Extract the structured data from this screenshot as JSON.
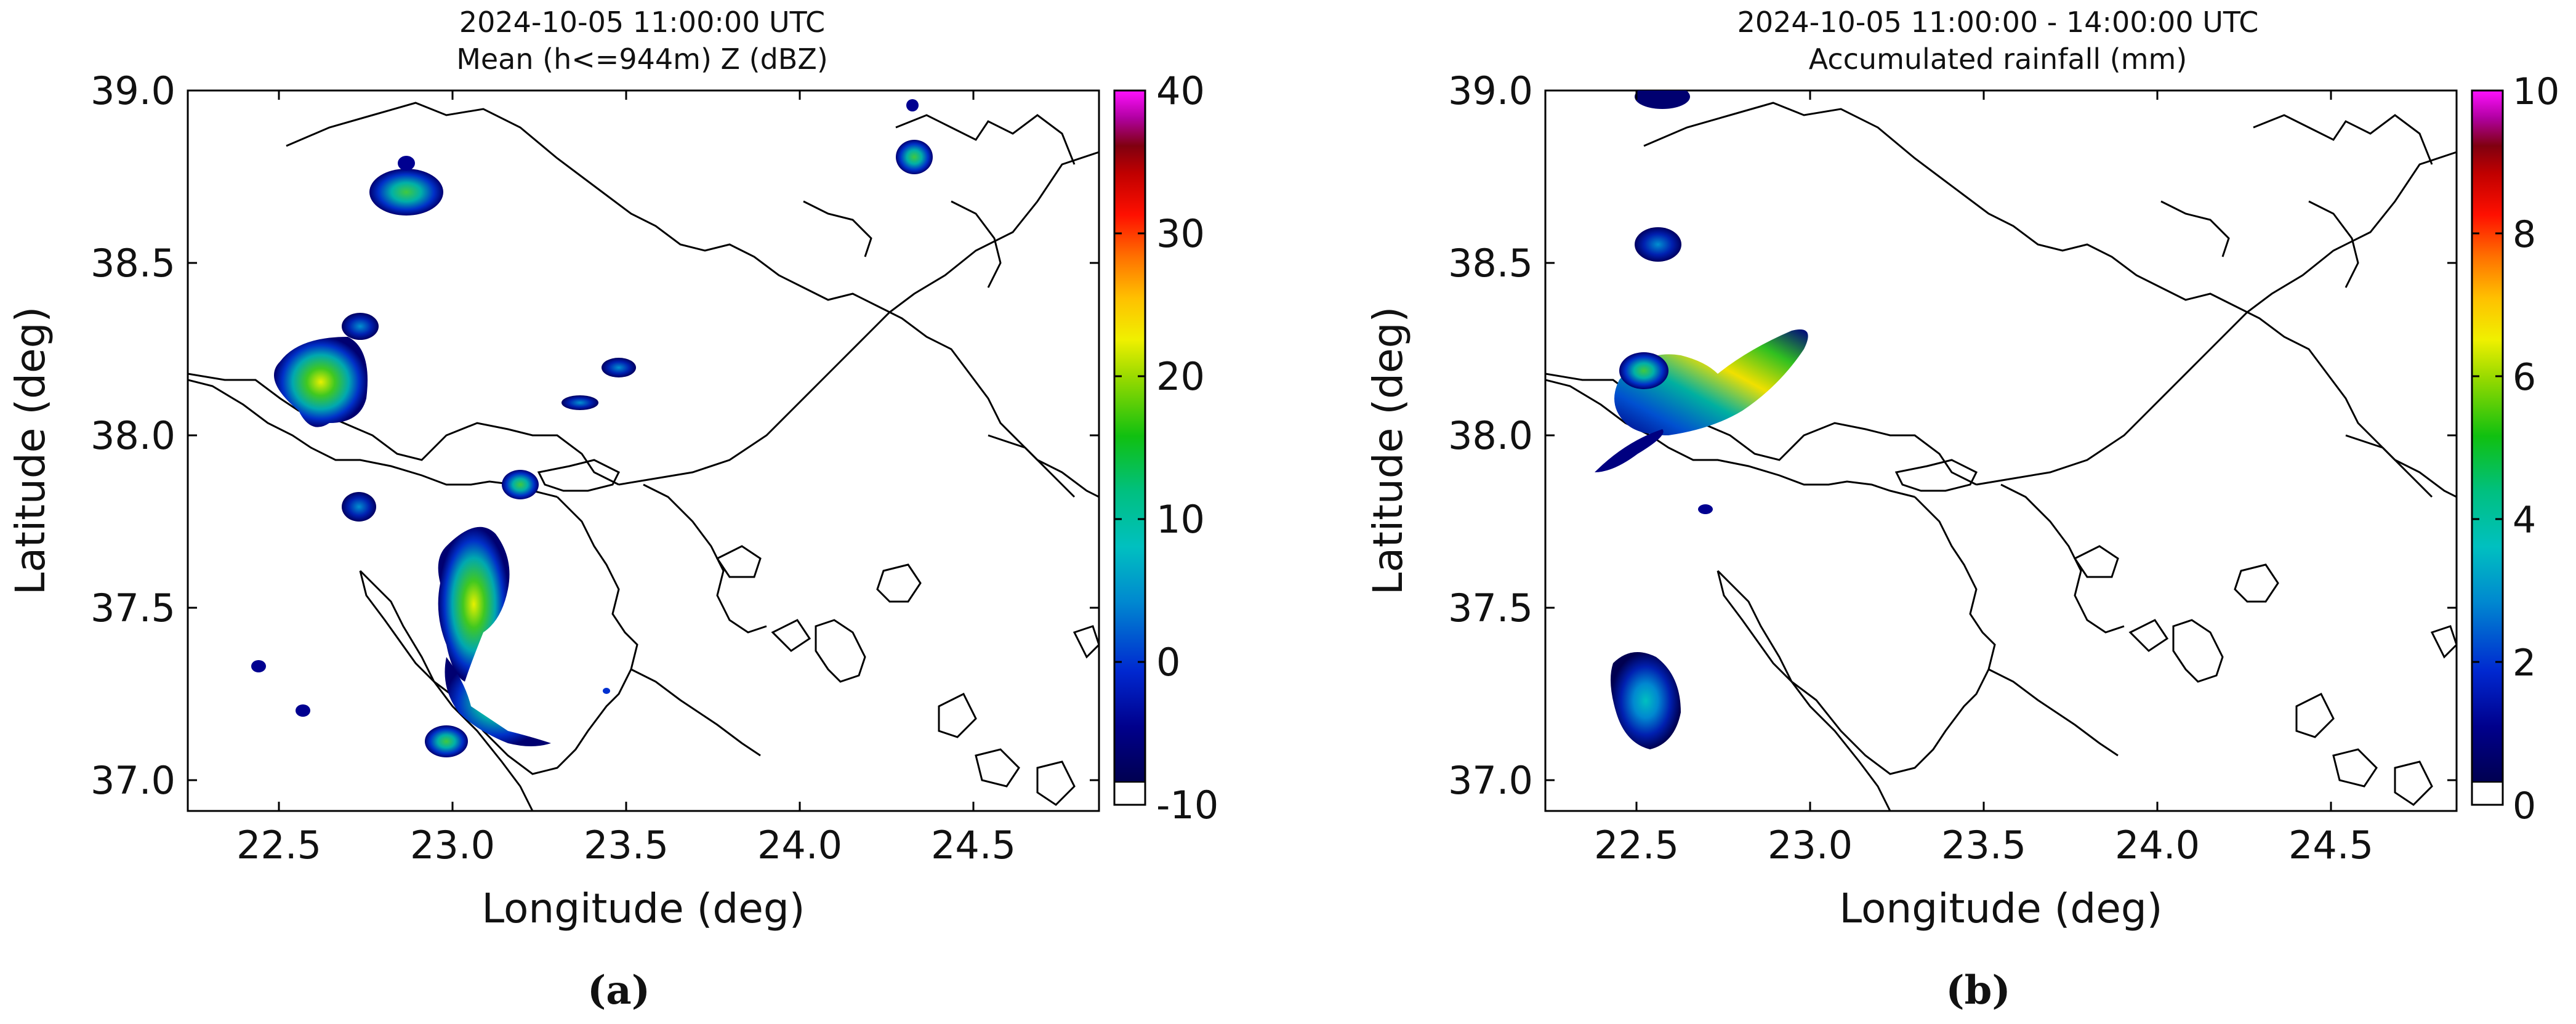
{
  "panels": [
    {
      "id": "a",
      "title_line1": "2024-10-05 11:00:00 UTC",
      "title_line2": "Mean (h<=944m) Z (dBZ)",
      "xlabel": "Longitude (deg)",
      "ylabel": "Latitude (deg)",
      "xticks": [
        "22.5",
        "23.0",
        "23.5",
        "24.0",
        "24.5"
      ],
      "yticks": [
        "39.0",
        "38.5",
        "38.0",
        "37.5",
        "37.0"
      ],
      "colorbar_ticks": [
        "40",
        "30",
        "20",
        "10",
        "0",
        "-10"
      ],
      "caption": "(a)"
    },
    {
      "id": "b",
      "title_line1": "2024-10-05 11:00:00 - 14:00:00 UTC",
      "title_line2": "Accumulated rainfall (mm)",
      "xlabel": "Longitude (deg)",
      "ylabel": "Latitude (deg)",
      "xticks": [
        "22.5",
        "23.0",
        "23.5",
        "24.0",
        "24.5"
      ],
      "yticks": [
        "39.0",
        "38.5",
        "38.0",
        "37.5",
        "37.0"
      ],
      "colorbar_ticks": [
        "10",
        "8",
        "6",
        "4",
        "2",
        "0"
      ],
      "caption": "(b)"
    }
  ],
  "map_data": {
    "lon_range": [
      22.28,
      24.9
    ],
    "lat_range": [
      36.92,
      39.0
    ],
    "panel_a_echoes": [
      {
        "lon": 22.9,
        "lat": 38.7,
        "peak": "green"
      },
      {
        "lon": 22.62,
        "lat": 38.14,
        "peak": "yellow"
      },
      {
        "lon": 23.1,
        "lat": 37.6,
        "peak": "yellow"
      },
      {
        "lon": 24.38,
        "lat": 38.8,
        "peak": "green"
      }
    ],
    "panel_b_rain": [
      {
        "lon": 22.85,
        "lat": 38.14,
        "peak": "yellow"
      },
      {
        "lon": 22.55,
        "lat": 37.2,
        "peak": "cyan"
      },
      {
        "lon": 22.58,
        "lat": 38.55,
        "peak": "blue"
      }
    ]
  }
}
